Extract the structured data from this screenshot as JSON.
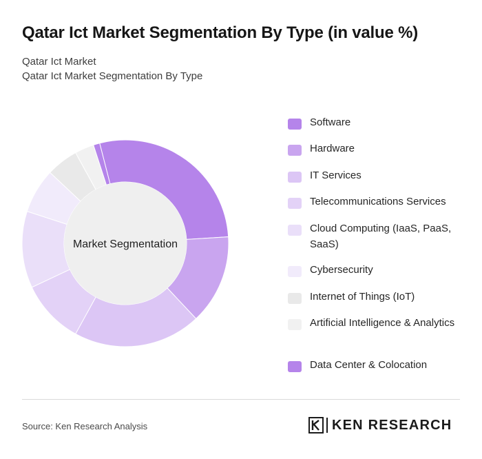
{
  "title": "Qatar Ict Market Segmentation By Type (in value %)",
  "subtitle_1": "Qatar Ict Market",
  "subtitle_2": "Qatar Ict Market Segmentation By Type",
  "chart_data": {
    "type": "pie",
    "center_label": "Market Segmentation",
    "categories": [
      "Software",
      "Hardware",
      "IT Services",
      "Telecommunications Services",
      "Cloud Computing (IaaS, PaaS, SaaS)",
      "Cybersecurity",
      "Internet of Things (IoT)",
      "Artificial Intelligence & Analytics",
      "Data Center & Colocation"
    ],
    "values": [
      28,
      14,
      20,
      10,
      12,
      7,
      5,
      3,
      1
    ],
    "colors": [
      "#b584ea",
      "#c9a5ef",
      "#dcc6f5",
      "#e3d2f7",
      "#eadff9",
      "#f1ebfb",
      "#e9e9e9",
      "#f1f1f1",
      "#b584ea"
    ],
    "legend_position": "right"
  },
  "footer": {
    "source": "Source: Ken Research Analysis",
    "logo_text": "KEN RESEARCH"
  }
}
